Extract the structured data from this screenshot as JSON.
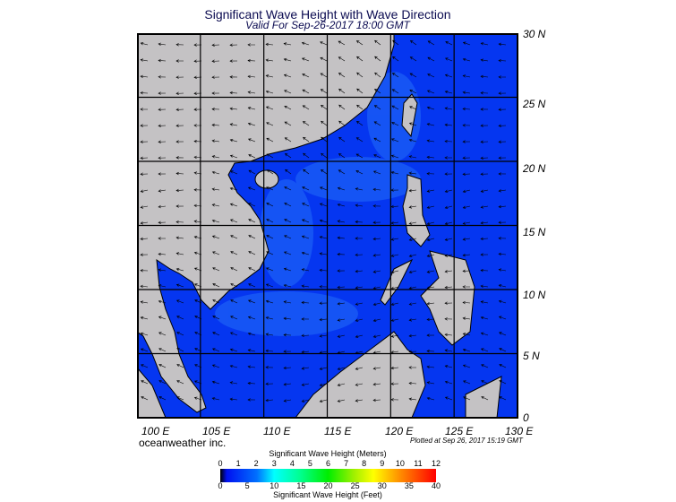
{
  "header": {
    "title": "Significant Wave Height with Wave Direction",
    "subtitle": "Valid For Sep-26-2017 18:00 GMT"
  },
  "map": {
    "region": "South China Sea",
    "lon_labels": [
      "100 E",
      "105 E",
      "110 E",
      "115 E",
      "120 E",
      "125 E",
      "130 E"
    ],
    "lat_labels": [
      "30 N",
      "25 N",
      "20 N",
      "15 N",
      "10 N",
      "5 N",
      "0"
    ],
    "lon_range": [
      100,
      130
    ],
    "lat_range": [
      0,
      30
    ],
    "colors": {
      "land": "#c4c2c4",
      "sea": "#0536f0",
      "sea_light": "#1a5cf5",
      "border": "#000000"
    },
    "arrow_direction": "westward, mostly west to southwest"
  },
  "footer": {
    "brand": "oceanweather inc.",
    "plotted": "Plotted at Sep 26, 2017 15:19 GMT"
  },
  "colorbar": {
    "meters_label": "Significant Wave Height (Meters)",
    "feet_label": "Significant Wave Height (Feet)",
    "meters_ticks": [
      "0",
      "1",
      "2",
      "3",
      "4",
      "5",
      "6",
      "7",
      "8",
      "9",
      "10",
      "11",
      "12"
    ],
    "feet_ticks": [
      "0",
      "5",
      "10",
      "15",
      "20",
      "25",
      "30",
      "35",
      "40"
    ]
  }
}
